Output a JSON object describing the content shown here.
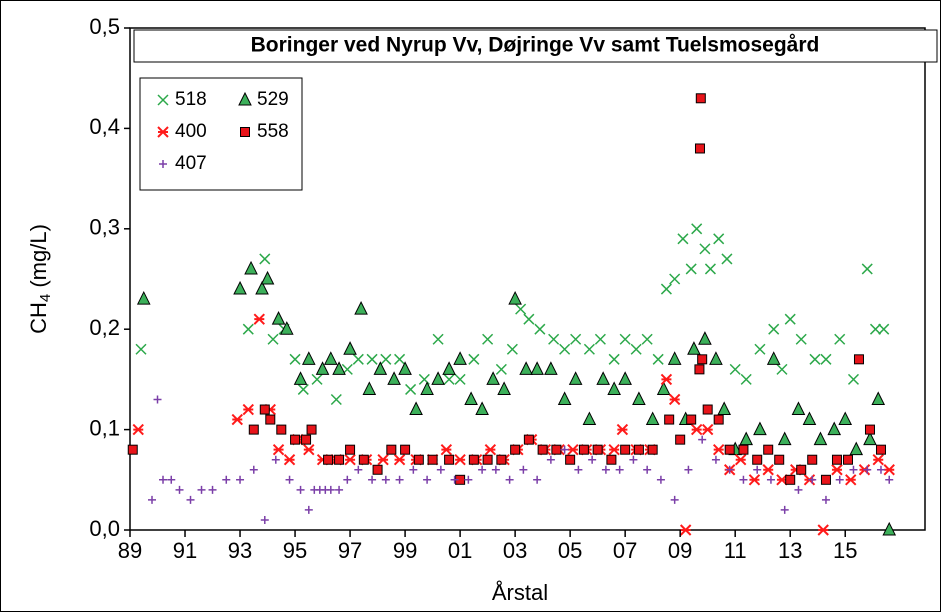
{
  "chart_data": {
    "type": "scatter",
    "title": "Boringer ved Nyrup Vv, Døjringe Vv samt Tuelsmosegård",
    "xlabel": "Årstal",
    "ylabel_parts": [
      "CH",
      "4",
      " (mg/L)"
    ],
    "xlim": [
      1989,
      2017.9
    ],
    "ylim": [
      0,
      0.5
    ],
    "xticks": [
      {
        "value": 1989,
        "label": "89"
      },
      {
        "value": 1991,
        "label": "91"
      },
      {
        "value": 1993,
        "label": "93"
      },
      {
        "value": 1995,
        "label": "95"
      },
      {
        "value": 1997,
        "label": "97"
      },
      {
        "value": 1999,
        "label": "99"
      },
      {
        "value": 2001,
        "label": "01"
      },
      {
        "value": 2003,
        "label": "03"
      },
      {
        "value": 2005,
        "label": "05"
      },
      {
        "value": 2007,
        "label": "07"
      },
      {
        "value": 2009,
        "label": "09"
      },
      {
        "value": 2011,
        "label": "11"
      },
      {
        "value": 2013,
        "label": "13"
      },
      {
        "value": 2015,
        "label": "15"
      }
    ],
    "yticks": [
      {
        "value": 0,
        "label": "0,0"
      },
      {
        "value": 0.1,
        "label": "0,1"
      },
      {
        "value": 0.2,
        "label": "0,2"
      },
      {
        "value": 0.3,
        "label": "0,3"
      },
      {
        "value": 0.4,
        "label": "0,4"
      },
      {
        "value": 0.5,
        "label": "0,5"
      }
    ],
    "legend": "upper left",
    "series": [
      {
        "name": "518",
        "color": "#2ca84a",
        "marker": "x",
        "x": [
          1989.4,
          1993.3,
          1993.9,
          1994.2,
          1994.6,
          1995.0,
          1995.3,
          1995.8,
          1996.5,
          1996.9,
          1997.3,
          1997.8,
          1998.3,
          1998.8,
          1999.2,
          1999.7,
          2000.2,
          2000.6,
          2001.0,
          2001.5,
          2002.0,
          2002.5,
          2002.9,
          2003.2,
          2003.5,
          2003.9,
          2004.4,
          2004.8,
          2005.2,
          2005.7,
          2006.1,
          2006.6,
          2007.0,
          2007.4,
          2007.8,
          2008.2,
          2008.5,
          2008.8,
          2009.1,
          2009.4,
          2009.6,
          2009.9,
          2010.1,
          2010.4,
          2010.7,
          2011.0,
          2011.4,
          2011.9,
          2012.4,
          2012.7,
          2013.0,
          2013.4,
          2013.9,
          2014.3,
          2014.8,
          2015.3,
          2015.8,
          2016.1,
          2016.4
        ],
        "values": [
          0.18,
          0.2,
          0.27,
          0.19,
          0.2,
          0.17,
          0.14,
          0.15,
          0.13,
          0.16,
          0.17,
          0.17,
          0.17,
          0.17,
          0.14,
          0.15,
          0.19,
          0.15,
          0.15,
          0.17,
          0.19,
          0.16,
          0.18,
          0.22,
          0.21,
          0.2,
          0.19,
          0.18,
          0.19,
          0.18,
          0.19,
          0.17,
          0.19,
          0.18,
          0.19,
          0.17,
          0.24,
          0.25,
          0.29,
          0.26,
          0.3,
          0.28,
          0.26,
          0.29,
          0.27,
          0.16,
          0.15,
          0.18,
          0.2,
          0.16,
          0.21,
          0.19,
          0.17,
          0.17,
          0.19,
          0.15,
          0.26,
          0.2,
          0.2
        ]
      },
      {
        "name": "529",
        "color": "#3cb05a",
        "marker": "triangle",
        "x": [
          1989.5,
          1993.0,
          1993.4,
          1993.8,
          1994.0,
          1994.4,
          1994.7,
          1995.2,
          1995.5,
          1996.0,
          1996.3,
          1996.6,
          1997.0,
          1997.4,
          1997.7,
          1998.1,
          1998.6,
          1999.0,
          1999.4,
          1999.8,
          2000.2,
          2000.6,
          2001.0,
          2001.4,
          2001.8,
          2002.2,
          2002.6,
          2003.0,
          2003.4,
          2003.8,
          2004.3,
          2004.8,
          2005.2,
          2005.7,
          2006.2,
          2006.6,
          2007.0,
          2007.5,
          2008.0,
          2008.4,
          2008.8,
          2009.2,
          2009.5,
          2009.9,
          2010.3,
          2010.6,
          2011.0,
          2011.4,
          2011.9,
          2012.4,
          2012.8,
          2013.3,
          2013.7,
          2014.1,
          2014.6,
          2015.0,
          2015.4,
          2015.9,
          2016.2,
          2016.6
        ],
        "values": [
          0.23,
          0.24,
          0.26,
          0.24,
          0.25,
          0.21,
          0.2,
          0.15,
          0.17,
          0.16,
          0.17,
          0.16,
          0.18,
          0.22,
          0.14,
          0.16,
          0.15,
          0.16,
          0.12,
          0.14,
          0.15,
          0.16,
          0.17,
          0.13,
          0.12,
          0.15,
          0.14,
          0.23,
          0.16,
          0.16,
          0.16,
          0.13,
          0.15,
          0.11,
          0.15,
          0.14,
          0.15,
          0.13,
          0.11,
          0.14,
          0.17,
          0.11,
          0.18,
          0.19,
          0.17,
          0.12,
          0.08,
          0.09,
          0.1,
          0.17,
          0.09,
          0.12,
          0.11,
          0.09,
          0.1,
          0.11,
          0.08,
          0.09,
          0.13,
          0
        ]
      },
      {
        "name": "400",
        "color": "#ff1a1a",
        "marker": "asterisk",
        "x": [
          1989.3,
          1992.9,
          1993.3,
          1993.7,
          1994.1,
          1994.4,
          1994.8,
          1995.1,
          1995.5,
          1996.0,
          1996.5,
          1997.0,
          1997.6,
          1998.2,
          1998.8,
          1999.4,
          2000.0,
          2000.5,
          2001.0,
          2001.6,
          2002.1,
          2002.6,
          2003.1,
          2003.6,
          2004.1,
          2004.6,
          2005.1,
          2005.6,
          2006.1,
          2006.6,
          2006.9,
          2007.4,
          2007.9,
          2008.5,
          2008.8,
          2009.2,
          2009.6,
          2010.0,
          2010.4,
          2010.8,
          2011.2,
          2011.7,
          2012.2,
          2012.7,
          2013.2,
          2013.7,
          2014.2,
          2014.7,
          2015.2,
          2015.7,
          2016.2,
          2016.6
        ],
        "values": [
          0.1,
          0.11,
          0.12,
          0.21,
          0.12,
          0.08,
          0.07,
          0.09,
          0.08,
          0.07,
          0.07,
          0.07,
          0.07,
          0.07,
          0.07,
          0.07,
          0.07,
          0.08,
          0.07,
          0.07,
          0.08,
          0.07,
          0.08,
          0.09,
          0.08,
          0.08,
          0.08,
          0.08,
          0.08,
          0.08,
          0.1,
          0.08,
          0.08,
          0.15,
          0.13,
          0,
          0.1,
          0.1,
          0.08,
          0.06,
          0.07,
          0.05,
          0.06,
          0.05,
          0.06,
          0.05,
          0,
          0.06,
          0.05,
          0.06,
          0.07,
          0.06
        ]
      },
      {
        "name": "558",
        "color": "#e8141a",
        "marker": "square",
        "x": [
          1989.1,
          1993.5,
          1993.9,
          1994.1,
          1994.5,
          1995.0,
          1995.4,
          1995.6,
          1996.2,
          1996.6,
          1997.0,
          1997.5,
          1998.0,
          1998.5,
          1999.0,
          1999.5,
          2000.0,
          2000.6,
          2001.0,
          2001.5,
          2002.0,
          2002.5,
          2003.0,
          2003.5,
          2004.0,
          2004.5,
          2005.0,
          2005.5,
          2006.0,
          2006.5,
          2007.0,
          2007.5,
          2008.0,
          2008.6,
          2009.0,
          2009.4,
          2009.7,
          2009.75,
          2009.72,
          2009.8,
          2010.0,
          2010.4,
          2010.8,
          2011.3,
          2011.8,
          2012.2,
          2012.6,
          2013.0,
          2013.4,
          2013.8,
          2014.3,
          2014.7,
          2015.1,
          2015.5,
          2015.9,
          2016.3
        ],
        "values": [
          0.08,
          0.1,
          0.12,
          0.11,
          0.1,
          0.09,
          0.09,
          0.1,
          0.07,
          0.07,
          0.08,
          0.07,
          0.06,
          0.08,
          0.08,
          0.07,
          0.07,
          0.07,
          0.05,
          0.07,
          0.07,
          0.07,
          0.08,
          0.09,
          0.08,
          0.08,
          0.07,
          0.08,
          0.08,
          0.07,
          0.08,
          0.08,
          0.08,
          0.11,
          0.09,
          0.11,
          0.16,
          0.43,
          0.38,
          0.17,
          0.12,
          0.11,
          0.08,
          0.08,
          0.07,
          0.08,
          0.07,
          0.05,
          0.06,
          0.07,
          0.05,
          0.07,
          0.07,
          0.17,
          0.1,
          0.08
        ]
      },
      {
        "name": "407",
        "color": "#7b3fa8",
        "marker": "plus",
        "x": [
          1989.8,
          1990.0,
          1990.2,
          1990.5,
          1990.8,
          1991.2,
          1991.6,
          1992.0,
          1992.5,
          1993.0,
          1993.5,
          1993.9,
          1994.3,
          1994.8,
          1995.2,
          1995.5,
          1995.7,
          1995.9,
          1996.1,
          1996.3,
          1996.6,
          1996.9,
          1997.3,
          1997.8,
          1998.3,
          1998.8,
          1999.3,
          1999.8,
          2000.3,
          2000.8,
          2001.3,
          2001.8,
          2002.3,
          2002.8,
          2003.3,
          2003.8,
          2004.3,
          2004.8,
          2005.3,
          2005.8,
          2006.3,
          2006.8,
          2007.3,
          2007.8,
          2008.3,
          2008.8,
          2009.3,
          2009.8,
          2010.3,
          2010.8,
          2011.3,
          2011.8,
          2012.3,
          2012.8,
          2013.3,
          2013.8,
          2014.3,
          2014.8,
          2015.3,
          2015.8,
          2016.3,
          2016.6
        ],
        "values": [
          0.03,
          0.13,
          0.05,
          0.05,
          0.04,
          0.03,
          0.04,
          0.04,
          0.05,
          0.05,
          0.06,
          0.01,
          0.07,
          0.05,
          0.04,
          0.02,
          0.04,
          0.04,
          0.04,
          0.04,
          0.04,
          0.05,
          0.06,
          0.05,
          0.05,
          0.05,
          0.06,
          0.05,
          0.06,
          0.05,
          0.05,
          0.06,
          0.06,
          0.05,
          0.06,
          0.05,
          0.07,
          0.08,
          0.06,
          0.07,
          0.06,
          0.06,
          0.07,
          0.06,
          0.05,
          0.03,
          0.06,
          0.09,
          0.07,
          0.06,
          0.05,
          0.06,
          0.05,
          0.02,
          0.04,
          0.05,
          0.03,
          0.05,
          0.06,
          0.06,
          0.06,
          0.05
        ]
      }
    ]
  }
}
